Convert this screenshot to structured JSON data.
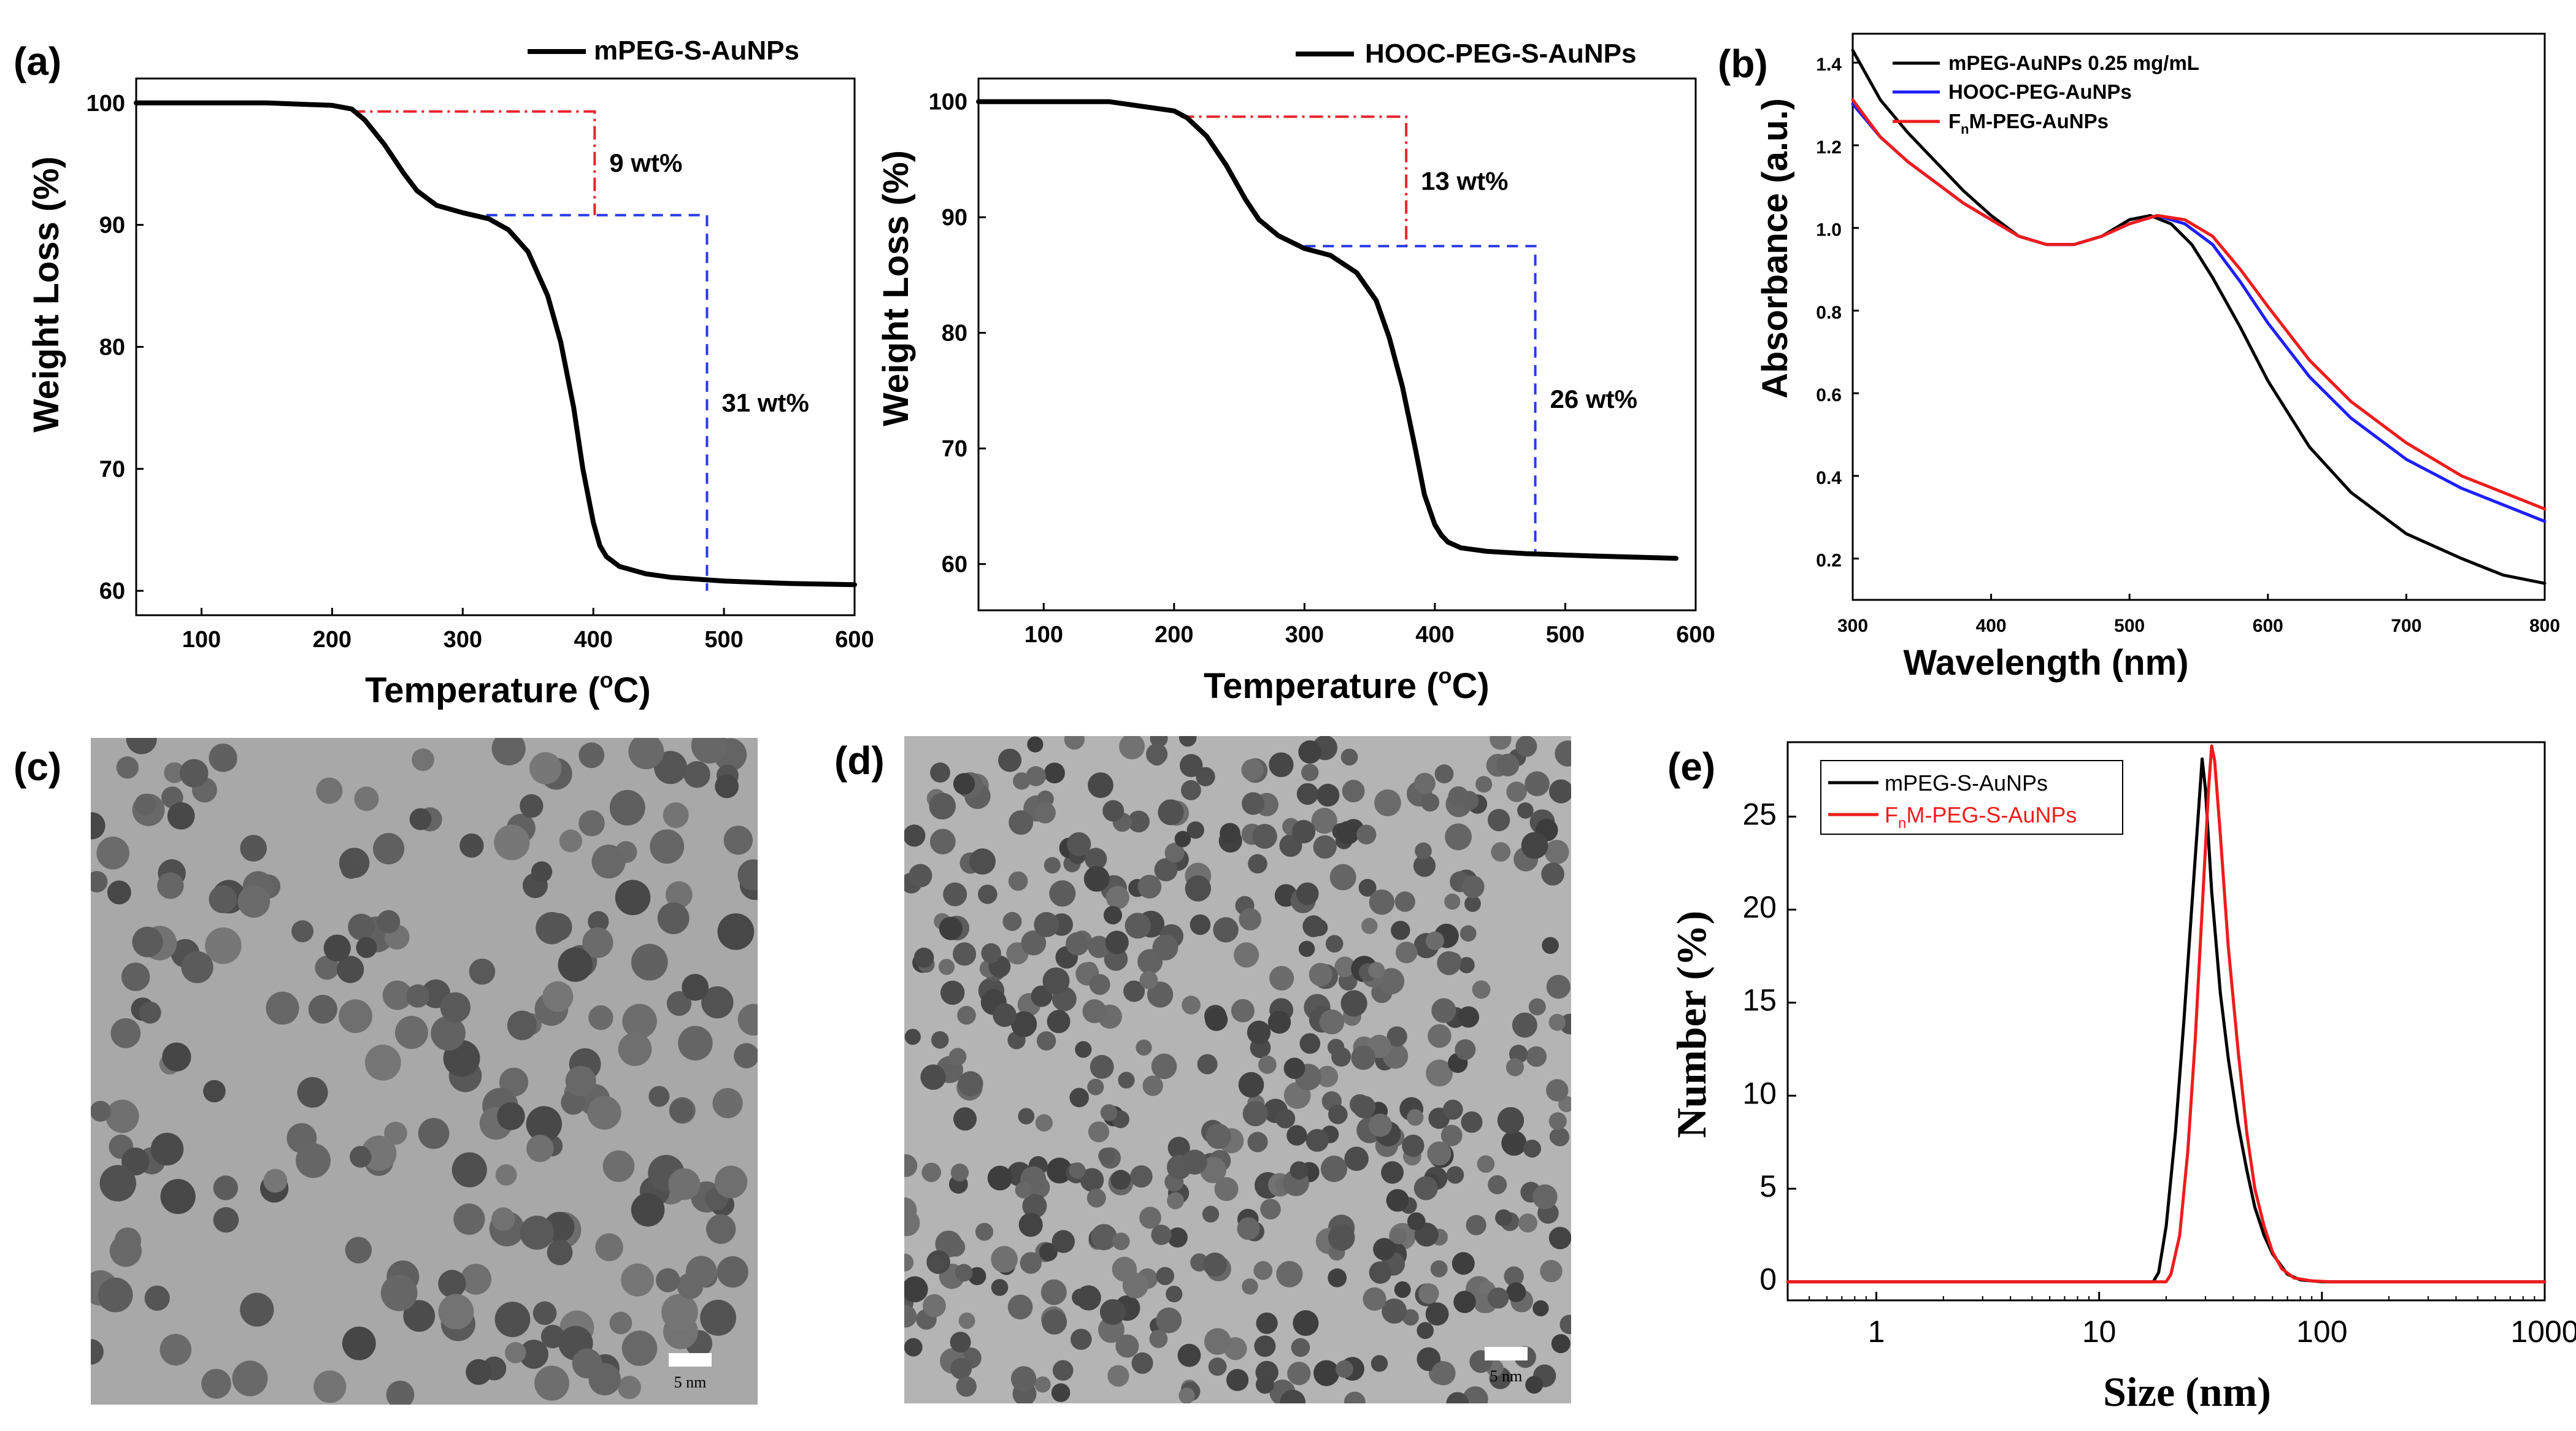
{
  "panel_labels": {
    "a": "(a)",
    "b": "(b)",
    "c": "(c)",
    "d": "(d)",
    "e": "(e)"
  },
  "colors": {
    "black": "#000000",
    "blue": "#1f1fff",
    "red": "#ee1c1c",
    "redDash": "#e8242b",
    "blueDash": "#2a3ae6"
  },
  "chart_data": [
    {
      "id": "a1",
      "type": "line",
      "title": "",
      "xlabel_main": "Temperature (",
      "xlabel_sup": "o",
      "xlabel_end": "C)",
      "ylabel": "Weight Loss (%)",
      "xlim": [
        50,
        600
      ],
      "ylim": [
        58,
        102
      ],
      "xticks": [
        100,
        200,
        300,
        400,
        500,
        600
      ],
      "yticks": [
        60,
        70,
        80,
        90,
        100
      ],
      "legend": "mPEG-S-AuNPs",
      "series": [
        {
          "name": "mPEG-S-AuNPs",
          "x": [
            50,
            150,
            200,
            215,
            225,
            240,
            255,
            265,
            280,
            300,
            320,
            335,
            350,
            365,
            375,
            385,
            392,
            400,
            405,
            410,
            420,
            440,
            460,
            500,
            550,
            600
          ],
          "y": [
            100,
            100,
            99.8,
            99.5,
            98.6,
            96.6,
            94.2,
            92.8,
            91.6,
            91.0,
            90.5,
            89.6,
            87.8,
            84.2,
            80.4,
            75.0,
            70.0,
            65.6,
            63.7,
            62.8,
            62.0,
            61.4,
            61.1,
            60.8,
            60.6,
            60.5
          ]
        }
      ],
      "annotations": [
        {
          "text": "9 wt%",
          "x1": 215,
          "x2": 401,
          "y1": 99.3,
          "y2": 90.8
        },
        {
          "text": "31 wt%",
          "x1": 318,
          "x2": 487,
          "y1": 90.8,
          "y2": 60.0
        }
      ]
    },
    {
      "id": "a2",
      "type": "line",
      "title": "",
      "xlabel_main": "Temperature (",
      "xlabel_sup": "o",
      "xlabel_end": "C)",
      "ylabel": "Weight Loss (%)",
      "xlim": [
        50,
        600
      ],
      "ylim": [
        56,
        102
      ],
      "xticks": [
        100,
        200,
        300,
        400,
        500,
        600
      ],
      "yticks": [
        60,
        70,
        80,
        90,
        100
      ],
      "legend": "HOOC-PEG-S-AuNPs",
      "series": [
        {
          "name": "HOOC-PEG-S-AuNPs",
          "x": [
            50,
            150,
            200,
            210,
            225,
            240,
            255,
            265,
            280,
            300,
            320,
            340,
            355,
            365,
            375,
            385,
            392,
            400,
            405,
            410,
            420,
            440,
            470,
            520,
            585
          ],
          "y": [
            100,
            100,
            99.2,
            98.6,
            97.0,
            94.5,
            91.5,
            89.8,
            88.4,
            87.3,
            86.7,
            85.2,
            82.8,
            79.6,
            75.4,
            70.0,
            66.0,
            63.4,
            62.5,
            61.9,
            61.4,
            61.1,
            60.9,
            60.7,
            60.5
          ]
        }
      ],
      "annotations": [
        {
          "text": "13 wt%",
          "x1": 205,
          "x2": 378,
          "y1": 98.7,
          "y2": 87.5
        },
        {
          "text": "26 wt%",
          "x1": 300,
          "x2": 477,
          "y1": 87.5,
          "y2": 61.0
        }
      ]
    },
    {
      "id": "b",
      "type": "line",
      "title": "",
      "xlabel": "Wavelength (nm)",
      "ylabel": "Absorbance (a.u.)",
      "xlim": [
        300,
        800
      ],
      "ylim": [
        0.1,
        1.47
      ],
      "xticks": [
        300,
        400,
        500,
        600,
        700,
        800
      ],
      "yticks": [
        0.2,
        0.4,
        0.6,
        0.8,
        1.0,
        1.2,
        1.4
      ],
      "legend_placement": "top-left",
      "series": [
        {
          "name": "mPEG-AuNPs 0.25 mg/mL",
          "color": "black",
          "x": [
            300,
            320,
            340,
            360,
            380,
            400,
            420,
            440,
            460,
            480,
            500,
            515,
            530,
            545,
            560,
            580,
            600,
            630,
            660,
            700,
            740,
            770,
            800
          ],
          "y": [
            1.43,
            1.31,
            1.23,
            1.16,
            1.09,
            1.03,
            0.98,
            0.96,
            0.96,
            0.98,
            1.02,
            1.03,
            1.01,
            0.96,
            0.88,
            0.76,
            0.63,
            0.47,
            0.36,
            0.26,
            0.2,
            0.16,
            0.14
          ]
        },
        {
          "name": "HOOC-PEG-AuNPs",
          "sub": "",
          "color": "blue",
          "x": [
            300,
            320,
            340,
            360,
            380,
            400,
            420,
            440,
            460,
            480,
            500,
            520,
            540,
            560,
            580,
            600,
            630,
            660,
            700,
            740,
            770,
            800
          ],
          "y": [
            1.3,
            1.22,
            1.16,
            1.11,
            1.06,
            1.02,
            0.98,
            0.96,
            0.96,
            0.98,
            1.01,
            1.03,
            1.01,
            0.96,
            0.87,
            0.77,
            0.64,
            0.54,
            0.44,
            0.37,
            0.33,
            0.29
          ]
        },
        {
          "name": "F",
          "sub": "n",
          "name_end": "M-PEG-AuNPs",
          "color": "red",
          "x": [
            300,
            320,
            340,
            360,
            380,
            400,
            420,
            440,
            460,
            480,
            500,
            520,
            540,
            560,
            580,
            600,
            630,
            660,
            700,
            740,
            770,
            800
          ],
          "y": [
            1.31,
            1.22,
            1.16,
            1.11,
            1.06,
            1.02,
            0.98,
            0.96,
            0.96,
            0.98,
            1.01,
            1.03,
            1.02,
            0.98,
            0.9,
            0.81,
            0.68,
            0.58,
            0.48,
            0.4,
            0.36,
            0.32
          ]
        }
      ]
    },
    {
      "id": "e",
      "type": "line",
      "title": "",
      "xlabel": "Size (nm)",
      "ylabel": "Number (%)",
      "xscale": "log",
      "xlim": [
        0.4,
        1000
      ],
      "ylim": [
        -1,
        29
      ],
      "xticks": [
        1,
        10,
        100,
        1000
      ],
      "xtick_labels": [
        "1",
        "10",
        "100",
        "1000"
      ],
      "yticks": [
        0,
        5,
        10,
        15,
        20,
        25
      ],
      "legend_placement": "top-left",
      "series": [
        {
          "name": "mPEG-S-AuNPs",
          "color": "black",
          "x": [
            0.4,
            17.5,
            18.5,
            20,
            22,
            24,
            26,
            28,
            29,
            30,
            32,
            35,
            38,
            42,
            46,
            50,
            55,
            60,
            70,
            80,
            100,
            1000
          ],
          "y": [
            0,
            0,
            0.5,
            3,
            8,
            14,
            20,
            25.5,
            28.1,
            26.5,
            21,
            15.5,
            12,
            8.5,
            6,
            4,
            2.5,
            1.5,
            0.4,
            0.1,
            0,
            0
          ]
        },
        {
          "name": "F",
          "sub": "n",
          "name_end": "M-PEG-S-AuNPs",
          "color": "red",
          "x": [
            0.4,
            20,
            21,
            23,
            25,
            27,
            29,
            31,
            32,
            33,
            35,
            38,
            42,
            46,
            50,
            55,
            60,
            66,
            75,
            90,
            110,
            1000
          ],
          "y": [
            0,
            0,
            0.4,
            2.5,
            7,
            13,
            20,
            26.5,
            28.8,
            28,
            24,
            18,
            12.5,
            8,
            5,
            3,
            1.6,
            0.7,
            0.2,
            0.05,
            0,
            0
          ]
        }
      ]
    }
  ],
  "tem_c": {
    "scale_label": "5 nm"
  },
  "tem_d": {
    "scale_label": "5 nm"
  }
}
